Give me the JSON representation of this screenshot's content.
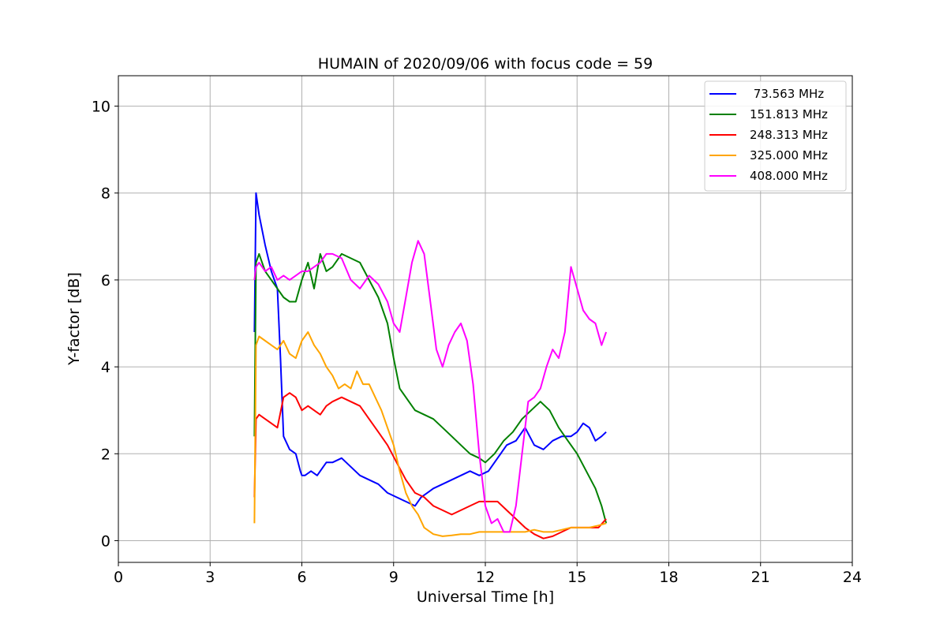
{
  "chart_data": {
    "type": "line",
    "title": "HUMAIN of 2020/09/06 with focus code = 59",
    "xlabel": "Universal Time [h]",
    "ylabel": "Y-factor [dB]",
    "xlim": [
      0,
      24
    ],
    "ylim": [
      -0.5,
      10.7
    ],
    "xticks": [
      0,
      3,
      6,
      9,
      12,
      15,
      18,
      21,
      24
    ],
    "yticks": [
      0,
      2,
      4,
      6,
      8,
      10
    ],
    "grid": true,
    "legend_position": "top-right",
    "series": [
      {
        "name": " 73.563 MHz",
        "color": "#0000ff",
        "x": [
          4.45,
          4.5,
          4.6,
          4.8,
          5.0,
          5.2,
          5.3,
          5.4,
          5.6,
          5.8,
          5.95,
          6.0,
          6.1,
          6.3,
          6.5,
          6.8,
          7.0,
          7.3,
          7.6,
          7.9,
          8.2,
          8.5,
          8.8,
          9.1,
          9.4,
          9.7,
          9.9,
          10.1,
          10.3,
          10.6,
          10.9,
          11.2,
          11.5,
          11.8,
          12.1,
          12.4,
          12.7,
          13.0,
          13.3,
          13.6,
          13.9,
          14.2,
          14.5,
          14.8,
          15.0,
          15.2,
          15.4,
          15.6,
          15.8,
          15.95
        ],
        "y": [
          4.8,
          8.0,
          7.5,
          6.8,
          6.2,
          5.8,
          4.2,
          2.4,
          2.1,
          2.0,
          1.6,
          1.5,
          1.5,
          1.6,
          1.5,
          1.8,
          1.8,
          1.9,
          1.7,
          1.5,
          1.4,
          1.3,
          1.1,
          1.0,
          0.9,
          0.8,
          1.0,
          1.1,
          1.2,
          1.3,
          1.4,
          1.5,
          1.6,
          1.5,
          1.6,
          1.9,
          2.2,
          2.3,
          2.6,
          2.2,
          2.1,
          2.3,
          2.4,
          2.4,
          2.5,
          2.7,
          2.6,
          2.3,
          2.4,
          2.5
        ]
      },
      {
        "name": "151.813 MHz",
        "color": "#008000",
        "x": [
          4.45,
          4.5,
          4.6,
          4.8,
          5.0,
          5.2,
          5.4,
          5.6,
          5.8,
          6.0,
          6.2,
          6.4,
          6.6,
          6.8,
          7.0,
          7.3,
          7.6,
          7.9,
          8.2,
          8.5,
          8.8,
          9.0,
          9.2,
          9.4,
          9.7,
          10.0,
          10.3,
          10.6,
          10.9,
          11.2,
          11.5,
          11.8,
          12.0,
          12.3,
          12.6,
          12.9,
          13.2,
          13.5,
          13.8,
          14.1,
          14.4,
          14.7,
          15.0,
          15.3,
          15.6,
          15.8,
          15.95
        ],
        "y": [
          2.4,
          6.4,
          6.6,
          6.2,
          6.0,
          5.8,
          5.6,
          5.5,
          5.5,
          6.0,
          6.4,
          5.8,
          6.6,
          6.2,
          6.3,
          6.6,
          6.5,
          6.4,
          6.0,
          5.6,
          5.0,
          4.2,
          3.5,
          3.3,
          3.0,
          2.9,
          2.8,
          2.6,
          2.4,
          2.2,
          2.0,
          1.9,
          1.8,
          2.0,
          2.3,
          2.5,
          2.8,
          3.0,
          3.2,
          3.0,
          2.6,
          2.3,
          2.0,
          1.6,
          1.2,
          0.8,
          0.4
        ]
      },
      {
        "name": "248.313 MHz",
        "color": "#ff0000",
        "x": [
          4.45,
          4.5,
          4.6,
          4.8,
          5.0,
          5.2,
          5.4,
          5.6,
          5.8,
          6.0,
          6.2,
          6.4,
          6.6,
          6.8,
          7.0,
          7.3,
          7.6,
          7.9,
          8.2,
          8.5,
          8.8,
          9.1,
          9.4,
          9.7,
          10.0,
          10.3,
          10.6,
          10.9,
          11.2,
          11.5,
          11.8,
          12.1,
          12.4,
          12.7,
          13.0,
          13.3,
          13.6,
          13.9,
          14.2,
          14.5,
          14.8,
          15.1,
          15.4,
          15.7,
          15.95
        ],
        "y": [
          1.0,
          2.8,
          2.9,
          2.8,
          2.7,
          2.6,
          3.3,
          3.4,
          3.3,
          3.0,
          3.1,
          3.0,
          2.9,
          3.1,
          3.2,
          3.3,
          3.2,
          3.1,
          2.8,
          2.5,
          2.2,
          1.8,
          1.4,
          1.1,
          1.0,
          0.8,
          0.7,
          0.6,
          0.7,
          0.8,
          0.9,
          0.9,
          0.9,
          0.7,
          0.5,
          0.3,
          0.15,
          0.05,
          0.1,
          0.2,
          0.3,
          0.3,
          0.3,
          0.3,
          0.5
        ]
      },
      {
        "name": "325.000 MHz",
        "color": "#ffa500",
        "x": [
          4.45,
          4.5,
          4.6,
          4.8,
          5.0,
          5.2,
          5.4,
          5.6,
          5.8,
          6.0,
          6.2,
          6.4,
          6.6,
          6.8,
          7.0,
          7.2,
          7.4,
          7.6,
          7.8,
          8.0,
          8.2,
          8.4,
          8.6,
          8.8,
          9.0,
          9.2,
          9.4,
          9.6,
          9.8,
          10.0,
          10.3,
          10.6,
          10.9,
          11.2,
          11.5,
          11.8,
          12.1,
          12.4,
          12.7,
          13.0,
          13.3,
          13.6,
          13.9,
          14.2,
          14.5,
          14.8,
          15.1,
          15.4,
          15.7,
          15.95
        ],
        "y": [
          0.4,
          4.5,
          4.7,
          4.6,
          4.5,
          4.4,
          4.6,
          4.3,
          4.2,
          4.6,
          4.8,
          4.5,
          4.3,
          4.0,
          3.8,
          3.5,
          3.6,
          3.5,
          3.9,
          3.6,
          3.6,
          3.3,
          3.0,
          2.6,
          2.2,
          1.6,
          1.1,
          0.8,
          0.6,
          0.3,
          0.15,
          0.1,
          0.12,
          0.15,
          0.15,
          0.2,
          0.2,
          0.2,
          0.2,
          0.2,
          0.2,
          0.25,
          0.2,
          0.2,
          0.25,
          0.3,
          0.3,
          0.3,
          0.35,
          0.4
        ]
      },
      {
        "name": "408.000 MHz",
        "color": "#ff00ff",
        "x": [
          4.45,
          4.5,
          4.6,
          4.8,
          5.0,
          5.2,
          5.4,
          5.6,
          5.8,
          6.0,
          6.2,
          6.4,
          6.6,
          6.8,
          7.0,
          7.3,
          7.6,
          7.9,
          8.2,
          8.5,
          8.8,
          9.0,
          9.2,
          9.4,
          9.6,
          9.8,
          10.0,
          10.2,
          10.4,
          10.6,
          10.8,
          11.0,
          11.2,
          11.4,
          11.6,
          11.8,
          12.0,
          12.2,
          12.4,
          12.6,
          12.8,
          13.0,
          13.2,
          13.4,
          13.6,
          13.8,
          14.0,
          14.2,
          14.4,
          14.6,
          14.8,
          15.0,
          15.2,
          15.4,
          15.6,
          15.8,
          15.95
        ],
        "y": [
          6.0,
          6.3,
          6.4,
          6.2,
          6.3,
          6.0,
          6.1,
          6.0,
          6.1,
          6.2,
          6.2,
          6.3,
          6.4,
          6.6,
          6.6,
          6.5,
          6.0,
          5.8,
          6.1,
          5.9,
          5.5,
          5.0,
          4.8,
          5.6,
          6.4,
          6.9,
          6.6,
          5.5,
          4.4,
          4.0,
          4.5,
          4.8,
          5.0,
          4.6,
          3.6,
          2.0,
          0.8,
          0.4,
          0.5,
          0.2,
          0.2,
          0.8,
          2.0,
          3.2,
          3.3,
          3.5,
          4.0,
          4.4,
          4.2,
          4.8,
          6.3,
          5.8,
          5.3,
          5.1,
          5.0,
          4.5,
          4.8
        ]
      }
    ]
  }
}
